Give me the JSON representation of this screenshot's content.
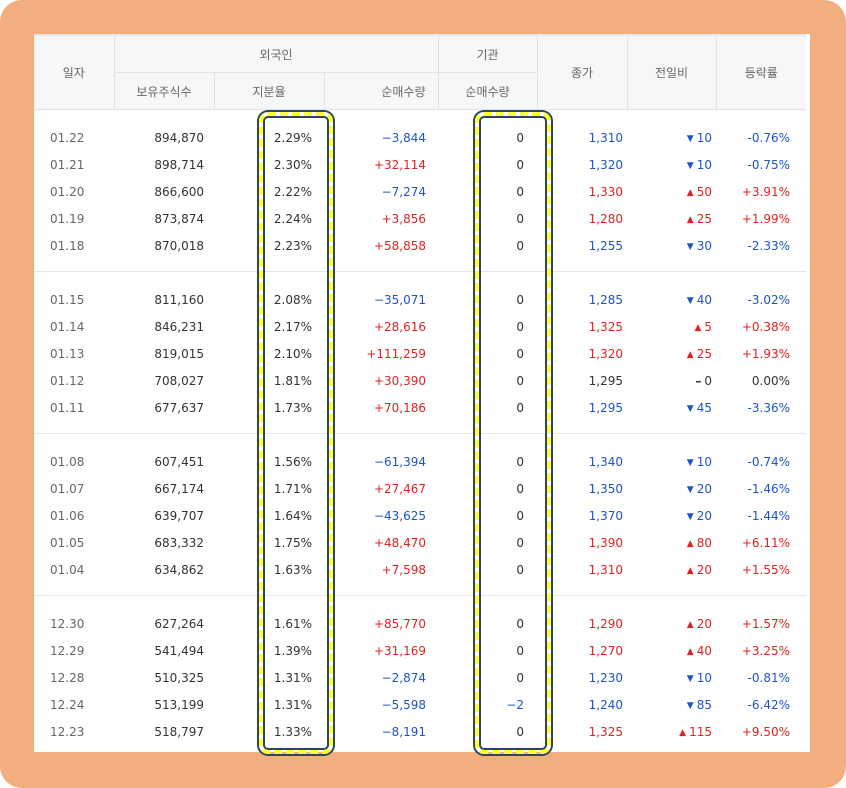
{
  "headers": {
    "date": "일자",
    "foreign": "외국인",
    "institution": "기관",
    "close": "종가",
    "diff": "전일비",
    "rate": "등락률",
    "holdings": "보유주식수",
    "ratio": "지분율",
    "foreign_net": "순매수량",
    "inst_net": "순매수량"
  },
  "colors": {
    "up": "#e22222",
    "down": "#1e54c8",
    "highlight": "#ffff33",
    "frame": "#f3ae80"
  },
  "rows": [
    {
      "date": "01.22",
      "holdings": "894,870",
      "ratio": "2.29%",
      "foreign_net": "−3,844",
      "inst_net": "0",
      "close": "1,310",
      "diff": "10",
      "rate": "-0.76%",
      "dir": "down",
      "fdir": "down",
      "cdir": "down",
      "idir": "flat"
    },
    {
      "date": "01.21",
      "holdings": "898,714",
      "ratio": "2.30%",
      "foreign_net": "+32,114",
      "inst_net": "0",
      "close": "1,320",
      "diff": "10",
      "rate": "-0.75%",
      "dir": "down",
      "fdir": "up",
      "cdir": "down",
      "idir": "flat"
    },
    {
      "date": "01.20",
      "holdings": "866,600",
      "ratio": "2.22%",
      "foreign_net": "−7,274",
      "inst_net": "0",
      "close": "1,330",
      "diff": "50",
      "rate": "+3.91%",
      "dir": "up",
      "fdir": "down",
      "cdir": "up",
      "idir": "flat"
    },
    {
      "date": "01.19",
      "holdings": "873,874",
      "ratio": "2.24%",
      "foreign_net": "+3,856",
      "inst_net": "0",
      "close": "1,280",
      "diff": "25",
      "rate": "+1.99%",
      "dir": "up",
      "fdir": "up",
      "cdir": "up",
      "idir": "flat"
    },
    {
      "date": "01.18",
      "holdings": "870,018",
      "ratio": "2.23%",
      "foreign_net": "+58,858",
      "inst_net": "0",
      "close": "1,255",
      "diff": "30",
      "rate": "-2.33%",
      "dir": "down",
      "fdir": "up",
      "cdir": "down",
      "idir": "flat"
    },
    {
      "date": "01.15",
      "holdings": "811,160",
      "ratio": "2.08%",
      "foreign_net": "−35,071",
      "inst_net": "0",
      "close": "1,285",
      "diff": "40",
      "rate": "-3.02%",
      "dir": "down",
      "fdir": "down",
      "cdir": "down",
      "idir": "flat"
    },
    {
      "date": "01.14",
      "holdings": "846,231",
      "ratio": "2.17%",
      "foreign_net": "+28,616",
      "inst_net": "0",
      "close": "1,325",
      "diff": "5",
      "rate": "+0.38%",
      "dir": "up",
      "fdir": "up",
      "cdir": "up",
      "idir": "flat"
    },
    {
      "date": "01.13",
      "holdings": "819,015",
      "ratio": "2.10%",
      "foreign_net": "+111,259",
      "inst_net": "0",
      "close": "1,320",
      "diff": "25",
      "rate": "+1.93%",
      "dir": "up",
      "fdir": "up",
      "cdir": "up",
      "idir": "flat"
    },
    {
      "date": "01.12",
      "holdings": "708,027",
      "ratio": "1.81%",
      "foreign_net": "+30,390",
      "inst_net": "0",
      "close": "1,295",
      "diff": "0",
      "rate": "0.00%",
      "dir": "flat",
      "fdir": "up",
      "cdir": "flat",
      "idir": "flat"
    },
    {
      "date": "01.11",
      "holdings": "677,637",
      "ratio": "1.73%",
      "foreign_net": "+70,186",
      "inst_net": "0",
      "close": "1,295",
      "diff": "45",
      "rate": "-3.36%",
      "dir": "down",
      "fdir": "up",
      "cdir": "down",
      "idir": "flat"
    },
    {
      "date": "01.08",
      "holdings": "607,451",
      "ratio": "1.56%",
      "foreign_net": "−61,394",
      "inst_net": "0",
      "close": "1,340",
      "diff": "10",
      "rate": "-0.74%",
      "dir": "down",
      "fdir": "down",
      "cdir": "down",
      "idir": "flat"
    },
    {
      "date": "01.07",
      "holdings": "667,174",
      "ratio": "1.71%",
      "foreign_net": "+27,467",
      "inst_net": "0",
      "close": "1,350",
      "diff": "20",
      "rate": "-1.46%",
      "dir": "down",
      "fdir": "up",
      "cdir": "down",
      "idir": "flat"
    },
    {
      "date": "01.06",
      "holdings": "639,707",
      "ratio": "1.64%",
      "foreign_net": "−43,625",
      "inst_net": "0",
      "close": "1,370",
      "diff": "20",
      "rate": "-1.44%",
      "dir": "down",
      "fdir": "down",
      "cdir": "down",
      "idir": "flat"
    },
    {
      "date": "01.05",
      "holdings": "683,332",
      "ratio": "1.75%",
      "foreign_net": "+48,470",
      "inst_net": "0",
      "close": "1,390",
      "diff": "80",
      "rate": "+6.11%",
      "dir": "up",
      "fdir": "up",
      "cdir": "up",
      "idir": "flat"
    },
    {
      "date": "01.04",
      "holdings": "634,862",
      "ratio": "1.63%",
      "foreign_net": "+7,598",
      "inst_net": "0",
      "close": "1,310",
      "diff": "20",
      "rate": "+1.55%",
      "dir": "up",
      "fdir": "up",
      "cdir": "up",
      "idir": "flat"
    },
    {
      "date": "12.30",
      "holdings": "627,264",
      "ratio": "1.61%",
      "foreign_net": "+85,770",
      "inst_net": "0",
      "close": "1,290",
      "diff": "20",
      "rate": "+1.57%",
      "dir": "up",
      "fdir": "up",
      "cdir": "up",
      "idir": "flat"
    },
    {
      "date": "12.29",
      "holdings": "541,494",
      "ratio": "1.39%",
      "foreign_net": "+31,169",
      "inst_net": "0",
      "close": "1,270",
      "diff": "40",
      "rate": "+3.25%",
      "dir": "up",
      "fdir": "up",
      "cdir": "up",
      "idir": "flat"
    },
    {
      "date": "12.28",
      "holdings": "510,325",
      "ratio": "1.31%",
      "foreign_net": "−2,874",
      "inst_net": "0",
      "close": "1,230",
      "diff": "10",
      "rate": "-0.81%",
      "dir": "down",
      "fdir": "down",
      "cdir": "down",
      "idir": "flat"
    },
    {
      "date": "12.24",
      "holdings": "513,199",
      "ratio": "1.31%",
      "foreign_net": "−5,598",
      "inst_net": "−2",
      "close": "1,240",
      "diff": "85",
      "rate": "-6.42%",
      "dir": "down",
      "fdir": "down",
      "cdir": "down",
      "idir": "down"
    },
    {
      "date": "12.23",
      "holdings": "518,797",
      "ratio": "1.33%",
      "foreign_net": "−8,191",
      "inst_net": "0",
      "close": "1,325",
      "diff": "115",
      "rate": "+9.50%",
      "dir": "up",
      "fdir": "down",
      "cdir": "up",
      "idir": "flat"
    }
  ]
}
